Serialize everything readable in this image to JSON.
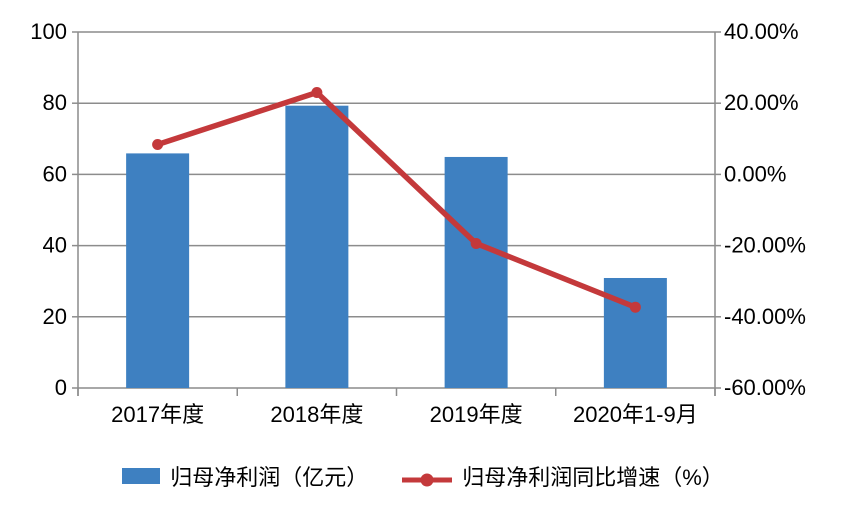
{
  "chart_data": {
    "type": "combo",
    "title": "",
    "xlabel": "",
    "ylabel_left": "",
    "ylabel_right": "",
    "grid": true,
    "legend_position": "bottom",
    "categories": [
      "2017年度",
      "2018年度",
      "2019年度",
      "2020年1-9月"
    ],
    "series": [
      {
        "name": "归母净利润（亿元）",
        "type": "bar",
        "axis": "left",
        "values": [
          65.9,
          79.3,
          64.9,
          30.9
        ]
      },
      {
        "name": "归母净利润同比增速（%）",
        "type": "line",
        "axis": "right",
        "values": [
          8.4,
          23.0,
          -19.4,
          -37.3
        ]
      }
    ],
    "left_axis": {
      "min": 0,
      "max": 100,
      "tick_values": [
        0,
        20,
        40,
        60,
        80,
        100
      ],
      "tick_labels": [
        "0",
        "20",
        "40",
        "60",
        "80",
        "100"
      ]
    },
    "right_axis": {
      "min": -60,
      "max": 40,
      "tick_values": [
        -60,
        -40,
        -20,
        0,
        20,
        40
      ],
      "tick_labels": [
        "-60.00%",
        "-40.00%",
        "-20.00%",
        "0.00%",
        "20.00%",
        "40.00%"
      ]
    },
    "colors": {
      "bar": "#3E80C1",
      "line": "#C4393B",
      "grid": "#8C8C8C",
      "text": "#000000",
      "background": "#FFFFFF"
    }
  }
}
